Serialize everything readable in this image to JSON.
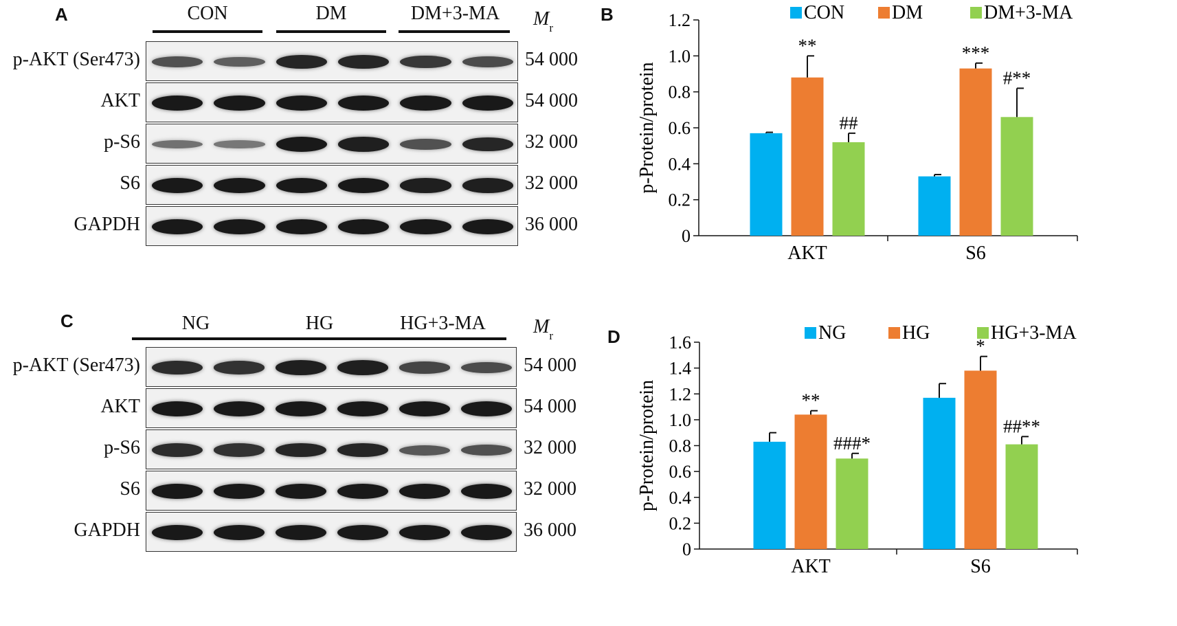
{
  "colors": {
    "con": "#00b0f0",
    "dm": "#ed7d31",
    "ma": "#92d050",
    "axis": "#111111",
    "band": "#1a1a1a"
  },
  "panel_A": {
    "letter": "A",
    "groups": [
      "CON",
      "DM",
      "DM+3-MA"
    ],
    "mr": "M",
    "mr_sub": "r",
    "rows": [
      {
        "label": "p-AKT (Ser473)",
        "mw": "54 000",
        "intensity": [
          0.55,
          0.45,
          0.9,
          0.9,
          0.75,
          0.6
        ]
      },
      {
        "label": "AKT",
        "mw": "54 000",
        "intensity": [
          1,
          1,
          1,
          1,
          1,
          1
        ]
      },
      {
        "label": "p-S6",
        "mw": "32 000",
        "intensity": [
          0.3,
          0.25,
          1,
          0.95,
          0.55,
          0.9
        ]
      },
      {
        "label": "S6",
        "mw": "32 000",
        "intensity": [
          1,
          1,
          1,
          1,
          0.95,
          0.95
        ]
      },
      {
        "label": "GAPDH",
        "mw": "36 000",
        "intensity": [
          1,
          1,
          1,
          1,
          1,
          1
        ]
      }
    ]
  },
  "panel_C": {
    "letter": "C",
    "groups": [
      "NG",
      "HG",
      "HG+3-MA"
    ],
    "mr": "M",
    "mr_sub": "r",
    "rows": [
      {
        "label": "p-AKT (Ser473)",
        "mw": "54 000",
        "intensity": [
          0.85,
          0.8,
          0.95,
          0.95,
          0.65,
          0.6
        ]
      },
      {
        "label": "AKT",
        "mw": "54 000",
        "intensity": [
          1,
          1,
          1,
          1,
          1,
          1
        ]
      },
      {
        "label": "p-S6",
        "mw": "32 000",
        "intensity": [
          0.85,
          0.8,
          0.9,
          0.9,
          0.5,
          0.55
        ]
      },
      {
        "label": "S6",
        "mw": "32 000",
        "intensity": [
          1,
          1,
          1,
          1,
          1,
          1
        ]
      },
      {
        "label": "GAPDH",
        "mw": "36 000",
        "intensity": [
          1,
          1,
          1,
          1,
          1,
          1
        ]
      }
    ]
  },
  "chart_data": [
    {
      "panel": "B",
      "type": "bar",
      "ylabel": "p-Protein/protein",
      "ylim": [
        0,
        1.2
      ],
      "yticks": [
        "0",
        "0.2",
        "0.4",
        "0.6",
        "0.8",
        "1.0",
        "1.2"
      ],
      "categories": [
        "AKT",
        "S6"
      ],
      "legend_position": "top",
      "series": [
        {
          "name": "CON",
          "values": [
            0.57,
            0.33
          ],
          "errors": [
            0.005,
            0.01
          ],
          "annotations": [
            "",
            ""
          ]
        },
        {
          "name": "DM",
          "values": [
            0.88,
            0.93
          ],
          "errors": [
            0.12,
            0.03
          ],
          "annotations": [
            "**",
            "***"
          ]
        },
        {
          "name": "DM+3-MA",
          "values": [
            0.52,
            0.66
          ],
          "errors": [
            0.05,
            0.16
          ],
          "annotations": [
            "##",
            "#**"
          ]
        }
      ]
    },
    {
      "panel": "D",
      "type": "bar",
      "ylabel": "p-Protein/protein",
      "ylim": [
        0,
        1.6
      ],
      "yticks": [
        "0",
        "0.2",
        "0.4",
        "0.6",
        "0.8",
        "1.0",
        "1.2",
        "1.4",
        "1.6"
      ],
      "categories": [
        "AKT",
        "S6"
      ],
      "legend_position": "top",
      "series": [
        {
          "name": "NG",
          "values": [
            0.83,
            1.17
          ],
          "errors": [
            0.07,
            0.11
          ],
          "annotations": [
            "",
            ""
          ]
        },
        {
          "name": "HG",
          "values": [
            1.04,
            1.38
          ],
          "errors": [
            0.03,
            0.11
          ],
          "annotations": [
            "**",
            "*"
          ]
        },
        {
          "name": "HG+3-MA",
          "values": [
            0.7,
            0.81
          ],
          "errors": [
            0.04,
            0.06
          ],
          "annotations": [
            "###*",
            "##**"
          ]
        }
      ]
    }
  ]
}
